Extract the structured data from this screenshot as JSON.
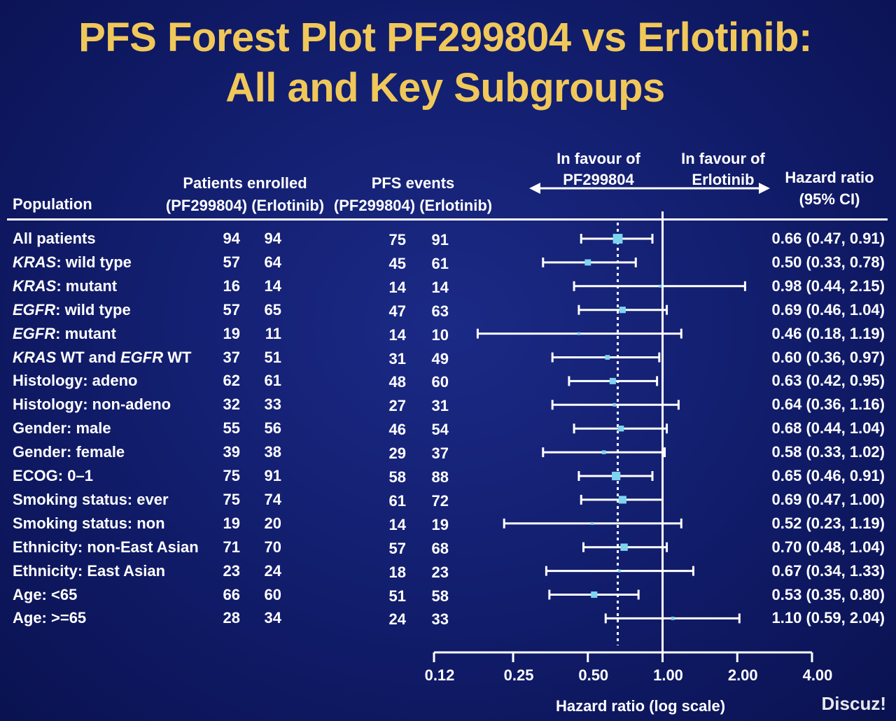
{
  "title": {
    "line1": "PFS Forest Plot PF299804 vs Erlotinib:",
    "line2": "All and Key Subgroups"
  },
  "headers": {
    "population": "Population",
    "enrolled": "Patients enrolled",
    "enrolled_sub": "(PF299804) (Erlotinib)",
    "events": "PFS events",
    "events_sub": "(PF299804) (Erlotinib)",
    "favour_left": "In favour of",
    "favour_left_drug": "PF299804",
    "favour_right": "In favour of",
    "favour_right_drug": "Erlotinib",
    "hr": "Hazard ratio",
    "hr_sub": "(95% CI)"
  },
  "watermark": "Discuz!",
  "colors": {
    "background": "#111c6a",
    "title": "#f0c85a",
    "marker": "#7fd3f0",
    "line": "#ffffff"
  },
  "chart_data": {
    "type": "forest",
    "xlabel": "Hazard ratio (log scale)",
    "x_scale": "log",
    "xlim": [
      0.12,
      4.0
    ],
    "ticks": [
      0.12,
      0.25,
      0.5,
      1.0,
      2.0,
      4.0
    ],
    "tick_labels": [
      "0.12",
      "0.25",
      "0.50",
      "1.00",
      "2.00",
      "4.00"
    ],
    "reference_line": 1.0,
    "overall_line": 0.66,
    "rows": [
      {
        "label_parts": [
          [
            "All patients",
            false
          ]
        ],
        "n_pf": "94",
        "n_erl": "94",
        "ev_pf": "75",
        "ev_erl": "91",
        "hr": 0.66,
        "lo": 0.47,
        "hi": 0.91,
        "hr_text": "0.66 (0.47, 0.91)"
      },
      {
        "label_parts": [
          [
            "KRAS",
            true
          ],
          [
            ": wild type",
            false
          ]
        ],
        "n_pf": "57",
        "n_erl": "64",
        "ev_pf": "45",
        "ev_erl": "61",
        "hr": 0.5,
        "lo": 0.33,
        "hi": 0.78,
        "hr_text": "0.50 (0.33, 0.78)"
      },
      {
        "label_parts": [
          [
            "KRAS",
            true
          ],
          [
            ": mutant",
            false
          ]
        ],
        "n_pf": "16",
        "n_erl": "14",
        "ev_pf": "14",
        "ev_erl": "14",
        "hr": 0.98,
        "lo": 0.44,
        "hi": 2.15,
        "hr_text": "0.98 (0.44, 2.15)"
      },
      {
        "label_parts": [
          [
            "EGFR",
            true
          ],
          [
            ": wild type",
            false
          ]
        ],
        "n_pf": "57",
        "n_erl": "65",
        "ev_pf": "47",
        "ev_erl": "63",
        "hr": 0.69,
        "lo": 0.46,
        "hi": 1.04,
        "hr_text": "0.69 (0.46, 1.04)"
      },
      {
        "label_parts": [
          [
            "EGFR",
            true
          ],
          [
            ": mutant",
            false
          ]
        ],
        "n_pf": "19",
        "n_erl": "11",
        "ev_pf": "14",
        "ev_erl": "10",
        "hr": 0.46,
        "lo": 0.18,
        "hi": 1.19,
        "hr_text": "0.46 (0.18, 1.19)"
      },
      {
        "label_parts": [
          [
            "KRAS",
            true
          ],
          [
            " WT and ",
            false
          ],
          [
            "EGFR",
            true
          ],
          [
            " WT",
            false
          ]
        ],
        "n_pf": "37",
        "n_erl": "51",
        "ev_pf": "31",
        "ev_erl": "49",
        "hr": 0.6,
        "lo": 0.36,
        "hi": 0.97,
        "hr_text": "0.60 (0.36, 0.97)"
      },
      {
        "label_parts": [
          [
            "Histology: adeno",
            false
          ]
        ],
        "n_pf": "62",
        "n_erl": "61",
        "ev_pf": "48",
        "ev_erl": "60",
        "hr": 0.63,
        "lo": 0.42,
        "hi": 0.95,
        "hr_text": "0.63 (0.42, 0.95)"
      },
      {
        "label_parts": [
          [
            "Histology: non-adeno",
            false
          ]
        ],
        "n_pf": "32",
        "n_erl": "33",
        "ev_pf": "27",
        "ev_erl": "31",
        "hr": 0.64,
        "lo": 0.36,
        "hi": 1.16,
        "hr_text": "0.64 (0.36, 1.16)"
      },
      {
        "label_parts": [
          [
            "Gender: male",
            false
          ]
        ],
        "n_pf": "55",
        "n_erl": "56",
        "ev_pf": "46",
        "ev_erl": "54",
        "hr": 0.68,
        "lo": 0.44,
        "hi": 1.04,
        "hr_text": "0.68 (0.44, 1.04)"
      },
      {
        "label_parts": [
          [
            "Gender: female",
            false
          ]
        ],
        "n_pf": "39",
        "n_erl": "38",
        "ev_pf": "29",
        "ev_erl": "37",
        "hr": 0.58,
        "lo": 0.33,
        "hi": 1.02,
        "hr_text": "0.58 (0.33, 1.02)"
      },
      {
        "label_parts": [
          [
            "ECOG: 0–1",
            false
          ]
        ],
        "n_pf": "75",
        "n_erl": "91",
        "ev_pf": "58",
        "ev_erl": "88",
        "hr": 0.65,
        "lo": 0.46,
        "hi": 0.91,
        "hr_text": "0.65 (0.46, 0.91)"
      },
      {
        "label_parts": [
          [
            "Smoking status: ever",
            false
          ]
        ],
        "n_pf": "75",
        "n_erl": "74",
        "ev_pf": "61",
        "ev_erl": "72",
        "hr": 0.69,
        "lo": 0.47,
        "hi": 1.0,
        "hr_text": "0.69 (0.47, 1.00)"
      },
      {
        "label_parts": [
          [
            "Smoking status: non",
            false
          ]
        ],
        "n_pf": "19",
        "n_erl": "20",
        "ev_pf": "14",
        "ev_erl": "19",
        "hr": 0.52,
        "lo": 0.23,
        "hi": 1.19,
        "hr_text": "0.52 (0.23, 1.19)"
      },
      {
        "label_parts": [
          [
            "Ethnicity: non-East Asian",
            false
          ]
        ],
        "n_pf": "71",
        "n_erl": "70",
        "ev_pf": "57",
        "ev_erl": "68",
        "hr": 0.7,
        "lo": 0.48,
        "hi": 1.04,
        "hr_text": "0.70 (0.48, 1.04)"
      },
      {
        "label_parts": [
          [
            "Ethnicity: East Asian",
            false
          ]
        ],
        "n_pf": "23",
        "n_erl": "24",
        "ev_pf": "18",
        "ev_erl": "23",
        "hr": 0.67,
        "lo": 0.34,
        "hi": 1.33,
        "hr_text": "0.67 (0.34, 1.33)"
      },
      {
        "label_parts": [
          [
            "Age: <65",
            false
          ]
        ],
        "n_pf": "66",
        "n_erl": "60",
        "ev_pf": "51",
        "ev_erl": "58",
        "hr": 0.53,
        "lo": 0.35,
        "hi": 0.8,
        "hr_text": "0.53 (0.35, 0.80)"
      },
      {
        "label_parts": [
          [
            "Age: >=65",
            false
          ]
        ],
        "n_pf": "28",
        "n_erl": "34",
        "ev_pf": "24",
        "ev_erl": "33",
        "hr": 1.1,
        "lo": 0.59,
        "hi": 2.04,
        "hr_text": "1.10 (0.59, 2.04)"
      }
    ]
  }
}
